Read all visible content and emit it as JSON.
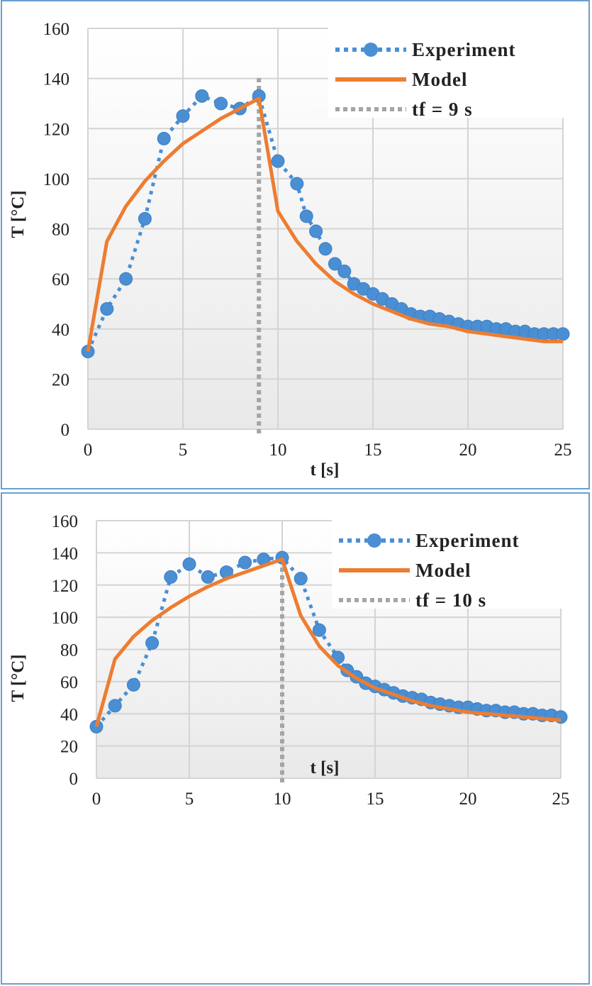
{
  "chart_data": [
    {
      "type": "line",
      "xlabel": "t [s]",
      "ylabel": "T [°C]",
      "xlim": [
        0,
        25
      ],
      "ylim": [
        0,
        160
      ],
      "xticks": [
        0,
        5,
        10,
        15,
        20,
        25
      ],
      "yticks": [
        0,
        20,
        40,
        60,
        80,
        100,
        120,
        140,
        160
      ],
      "grid": true,
      "legend_position": "top-right",
      "series": [
        {
          "name": "Experiment",
          "style": "dotted-markers",
          "color": "#4a8fd4",
          "x": [
            0,
            1,
            2,
            3,
            4,
            5,
            6,
            7,
            8,
            9,
            10,
            11,
            11.5,
            12,
            12.5,
            13,
            13.5,
            14,
            14.5,
            15,
            15.5,
            16,
            16.5,
            17,
            17.5,
            18,
            18.5,
            19,
            19.5,
            20,
            20.5,
            21,
            21.5,
            22,
            22.5,
            23,
            23.5,
            24,
            24.5,
            25
          ],
          "y": [
            31,
            48,
            60,
            84,
            116,
            125,
            133,
            130,
            128,
            133,
            107,
            98,
            85,
            79,
            72,
            66,
            63,
            58,
            56,
            54,
            52,
            50,
            48,
            46,
            45,
            45,
            44,
            43,
            42,
            41,
            41,
            41,
            40,
            40,
            39,
            39,
            38,
            38,
            38,
            38
          ]
        },
        {
          "name": "Model",
          "style": "solid",
          "color": "#ed7d31",
          "x": [
            0,
            1,
            2,
            3,
            4,
            5,
            6,
            7,
            8,
            9,
            10,
            11,
            12,
            13,
            14,
            15,
            16,
            17,
            18,
            19,
            20,
            21,
            22,
            23,
            24,
            25
          ],
          "y": [
            31,
            75,
            89,
            99,
            107,
            114,
            119,
            124,
            128,
            132,
            87,
            75,
            66,
            59,
            54,
            50,
            47,
            44,
            42,
            41,
            39,
            38,
            37,
            36,
            35,
            35
          ]
        },
        {
          "name": "tf = 9 s",
          "style": "vertical-dotted",
          "color": "#a5a5a5",
          "x_value": 9
        }
      ]
    },
    {
      "type": "line",
      "xlabel": "t [s]",
      "ylabel": "T [°C]",
      "xlim": [
        0,
        25
      ],
      "ylim": [
        0,
        160
      ],
      "xticks": [
        0,
        5,
        10,
        15,
        20,
        25
      ],
      "yticks": [
        0,
        20,
        40,
        60,
        80,
        100,
        120,
        140,
        160
      ],
      "grid": true,
      "legend_position": "top-right",
      "series": [
        {
          "name": "Experiment",
          "style": "dotted-markers",
          "color": "#4a8fd4",
          "x": [
            0,
            1,
            2,
            3,
            4,
            5,
            6,
            7,
            8,
            9,
            10,
            11,
            12,
            13,
            13.5,
            14,
            14.5,
            15,
            15.5,
            16,
            16.5,
            17,
            17.5,
            18,
            18.5,
            19,
            19.5,
            20,
            20.5,
            21,
            21.5,
            22,
            22.5,
            23,
            23.5,
            24,
            24.5,
            25
          ],
          "y": [
            32,
            45,
            58,
            84,
            125,
            133,
            125,
            128,
            134,
            136,
            137,
            124,
            92,
            75,
            67,
            63,
            59,
            57,
            55,
            53,
            51,
            50,
            49,
            47,
            46,
            45,
            44,
            44,
            43,
            42,
            42,
            41,
            41,
            40,
            40,
            39,
            39,
            38
          ]
        },
        {
          "name": "Model",
          "style": "solid",
          "color": "#ed7d31",
          "x": [
            0,
            1,
            2,
            3,
            4,
            5,
            6,
            7,
            8,
            9,
            10,
            11,
            12,
            13,
            14,
            15,
            16,
            17,
            18,
            19,
            20,
            21,
            22,
            23,
            24,
            25
          ],
          "y": [
            32,
            74,
            88,
            98,
            106,
            113,
            119,
            124,
            128,
            132,
            136,
            101,
            82,
            70,
            62,
            56,
            52,
            48,
            45,
            43,
            41,
            40,
            39,
            38,
            37,
            36
          ]
        },
        {
          "name": "tf = 10 s",
          "style": "vertical-dotted",
          "color": "#a5a5a5",
          "x_value": 10
        }
      ]
    }
  ]
}
